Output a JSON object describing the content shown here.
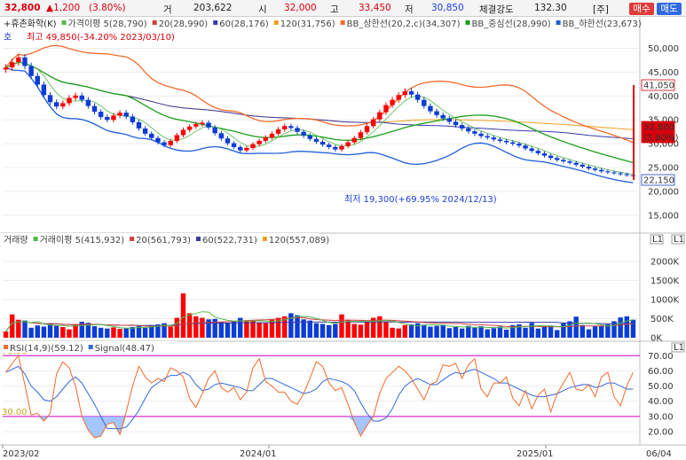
{
  "header": {
    "price": "32,800",
    "change": "▲1,200",
    "change_pct": "(3.80%)",
    "volume_label": "거",
    "volume": "203,622",
    "open_label": "시",
    "open": "32,000",
    "high_label": "고",
    "high": "33,450",
    "low_label": "저",
    "low": "30,850",
    "strength_label": "체결강도",
    "strength": "132.30",
    "tag": "[주]",
    "buy_label": "매수",
    "sell_label": "매도"
  },
  "colors": {
    "up": "#ff0000",
    "down": "#0a3cd6",
    "ma5": "#52b84a",
    "ma20": "#d04040",
    "ma60": "#3a3aa8",
    "ma120": "#f0a020",
    "bb_upper": "#f26b2a",
    "bb_mid": "#19a019",
    "bb_lower": "#1f5fd8"
  },
  "chart_data": [
    {
      "type": "candlestick",
      "title": "+휴촌화학(K)",
      "legend": [
        "가격이평 5(28,790)",
        "20(28,990)",
        "60(28,176)",
        "120(31,756)",
        "BB_상한선(20,2,c)(34,307)",
        "BB_중심선(28,990)",
        "BB_하한선(23,673)"
      ],
      "annotations": {
        "high": "최고 49,850(-34.20% 2023/03/10)",
        "low": "최저 19,300(+69.95% 2024/12/13)",
        "marker_left": "호"
      },
      "ylim": [
        12000,
        54000
      ],
      "y_ticks": [
        15000,
        20000,
        25000,
        30000,
        35000,
        40000,
        45000,
        50000
      ],
      "y_tick_labels": [
        "15,000",
        "20,000",
        "25,000",
        "30,000",
        "35,000",
        "40,000",
        "45,000",
        "50,000"
      ],
      "price_tags": [
        "41,050",
        "32,800",
        "(3.80%)",
        "22,150"
      ],
      "close": [
        46000,
        47100,
        48100,
        46300,
        44200,
        42400,
        40200,
        38700,
        37800,
        38500,
        39600,
        40100,
        39200,
        37900,
        36700,
        35600,
        35000,
        35900,
        36500,
        35700,
        34500,
        33200,
        32100,
        31200,
        30300,
        29700,
        30600,
        31800,
        32900,
        33600,
        34100,
        34400,
        33400,
        32200,
        31100,
        30100,
        29300,
        28600,
        29100,
        29900,
        30600,
        31300,
        32100,
        33000,
        33700,
        33300,
        32500,
        31700,
        31000,
        30400,
        29800,
        29300,
        28800,
        29500,
        30300,
        31200,
        32400,
        33700,
        35100,
        36600,
        38100,
        39200,
        40200,
        41000,
        40300,
        39200,
        37900,
        36800,
        36000,
        35300,
        34600,
        33900,
        33200,
        32600,
        32100,
        31600,
        31300,
        30900,
        30600,
        30300,
        30000,
        29600,
        29000,
        28500,
        28000,
        27500,
        27000,
        26600,
        26300,
        26000,
        25600,
        25200,
        24800,
        24500,
        24200,
        24000,
        23800,
        23600,
        23400,
        23200
      ]
    },
    {
      "type": "bar",
      "title": "거래량",
      "legend": [
        "거래이평 5(415,932)",
        "20(561,793)",
        "60(522,731)",
        "120(557,089)"
      ],
      "ylim": [
        0,
        2600
      ],
      "y_ticks": [
        0,
        500,
        1000,
        1500,
        2000
      ],
      "y_tick_labels": [
        "0K",
        "500K",
        "1000K",
        "1500K",
        "2000K"
      ],
      "values": [
        160,
        610,
        470,
        450,
        260,
        320,
        290,
        380,
        330,
        280,
        220,
        350,
        420,
        390,
        300,
        260,
        240,
        270,
        230,
        250,
        280,
        300,
        260,
        330,
        350,
        380,
        290,
        520,
        1160,
        640,
        560,
        520,
        480,
        490,
        410,
        380,
        420,
        520,
        450,
        430,
        400,
        380,
        470,
        520,
        560,
        640,
        590,
        480,
        450,
        380,
        360,
        330,
        360,
        610,
        470,
        360,
        340,
        420,
        520,
        560,
        420,
        260,
        240,
        330,
        350,
        380,
        340,
        290,
        310,
        330,
        250,
        280,
        240,
        310,
        260,
        300,
        220,
        250,
        290,
        210,
        330,
        350,
        260,
        390,
        240,
        310,
        320,
        200,
        380,
        430,
        550,
        330,
        220,
        300,
        310,
        350,
        430,
        530,
        560,
        470
      ]
    },
    {
      "type": "line",
      "title": "RSI(14,9)",
      "legend": [
        "RSI(14,9)(59.12)",
        "Signal(48.47)"
      ],
      "ylim": [
        13,
        76
      ],
      "y_ticks": [
        20,
        30,
        40,
        50,
        60,
        70
      ],
      "y_tick_labels": [
        "20.00",
        "30.00",
        "40.00",
        "50.00",
        "60.00",
        "70.00"
      ],
      "levels": [
        {
          "value": 30,
          "label": "30.00"
        },
        {
          "value": 70,
          "label": "70.00"
        }
      ],
      "series": [
        {
          "name": "RSI",
          "values": [
            59,
            65,
            70,
            51,
            31,
            32,
            27,
            32,
            58,
            66,
            62,
            50,
            30,
            21,
            16,
            17,
            25,
            26,
            18,
            33,
            50,
            63,
            56,
            52,
            55,
            53,
            62,
            60,
            56,
            42,
            36,
            45,
            55,
            60,
            49,
            46,
            49,
            41,
            46,
            62,
            68,
            53,
            50,
            46,
            46,
            40,
            38,
            45,
            55,
            66,
            63,
            52,
            47,
            49,
            38,
            26,
            17,
            24,
            30,
            45,
            55,
            59,
            63,
            60,
            55,
            48,
            41,
            51,
            53,
            64,
            63,
            65,
            55,
            64,
            68,
            48,
            43,
            52,
            52,
            56,
            42,
            37,
            47,
            35,
            44,
            48,
            33,
            45,
            52,
            59,
            48,
            47,
            51,
            43,
            56,
            59,
            43,
            37,
            50,
            59
          ]
        },
        {
          "name": "Signal",
          "values": [
            59,
            61,
            63,
            58,
            50,
            46,
            41,
            40,
            43,
            48,
            53,
            56,
            52,
            45,
            38,
            30,
            22,
            22,
            22,
            23,
            28,
            34,
            42,
            49,
            52,
            55,
            57,
            57,
            59,
            57,
            51,
            47,
            48,
            51,
            52,
            51,
            50,
            49,
            47,
            47,
            51,
            55,
            55,
            53,
            51,
            49,
            47,
            45,
            46,
            48,
            53,
            55,
            54,
            53,
            51,
            47,
            39,
            32,
            27,
            27,
            29,
            35,
            44,
            50,
            53,
            55,
            53,
            51,
            51,
            54,
            57,
            59,
            58,
            60,
            61,
            59,
            57,
            55,
            52,
            52,
            50,
            48,
            46,
            44,
            43,
            43,
            44,
            45,
            47,
            49,
            50,
            51,
            51,
            49,
            50,
            52,
            52,
            50,
            48,
            48
          ]
        }
      ]
    }
  ],
  "x_axis": {
    "labels": [
      "2023/02",
      "2024/01",
      "2025/01",
      "06/04"
    ]
  },
  "panel_icons": [
    "L1",
    "L1",
    "L1"
  ]
}
